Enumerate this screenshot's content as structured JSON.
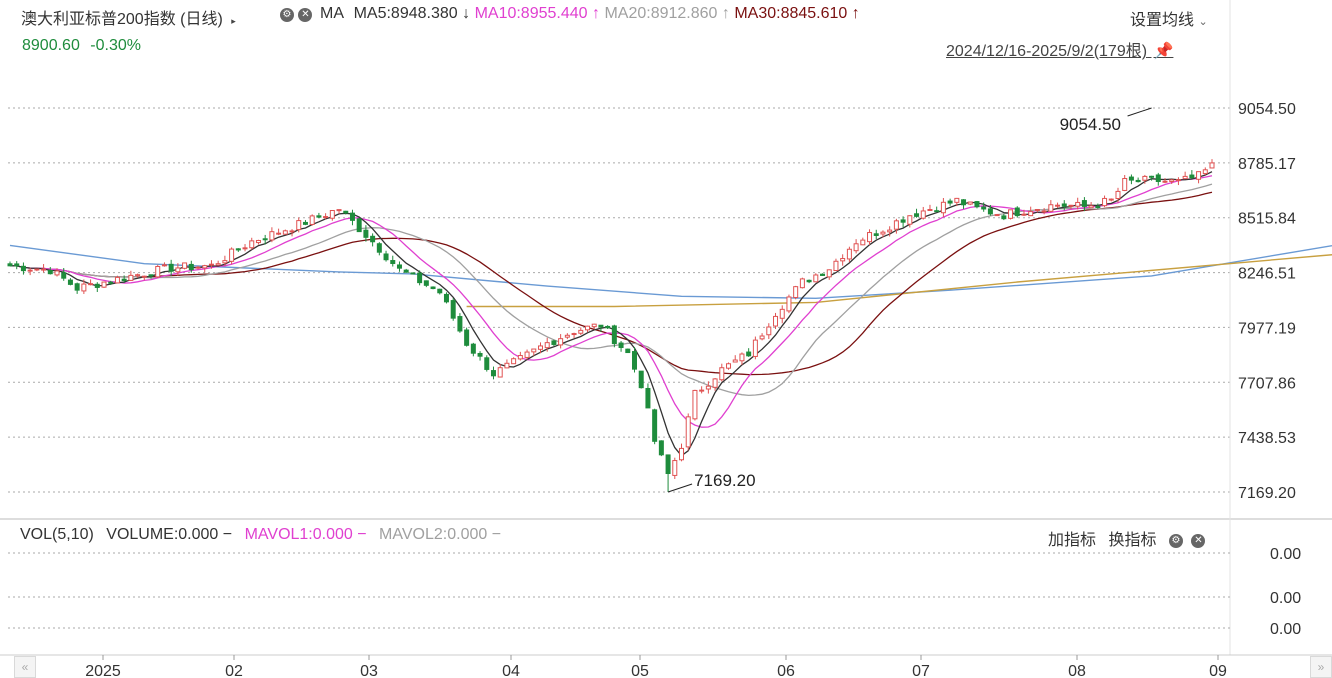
{
  "header": {
    "title": "澳大利亚标普200指数 (日线)",
    "ma_label": "MA",
    "ma5": "MA5:8948.380",
    "ma5_arrow": "↓",
    "ma10": "MA10:8955.440",
    "ma10_arrow": "↑",
    "ma20": "MA20:8912.860",
    "ma20_arrow": "↑",
    "ma30": "MA30:8845.610",
    "ma30_arrow": "↑",
    "settings": "设置均线",
    "price": "8900.60",
    "change": "-0.30%",
    "range": "2024/12/16-2025/9/2(179根)"
  },
  "colors": {
    "up": "#e05252",
    "down": "#1e8c3c",
    "ma5": "#333333",
    "ma10": "#e040d0",
    "ma20": "#a0a0a0",
    "ma30": "#7a1010",
    "ma_blue": "#6a9ad4",
    "ma_gold": "#c8a040",
    "price_green": "#1e8c3c"
  },
  "chart_data": {
    "type": "candlestick",
    "y_ticks": [
      "9054.50",
      "8785.17",
      "8515.84",
      "8246.51",
      "7977.19",
      "7707.86",
      "7438.53",
      "7169.20"
    ],
    "x_ticks": [
      "2025",
      "02",
      "03",
      "04",
      "05",
      "06",
      "07",
      "08",
      "09"
    ],
    "max_label": "9054.50",
    "min_label": "7169.20",
    "ylim": [
      7169.2,
      9054.5
    ],
    "anchors": [
      [
        0,
        8280
      ],
      [
        6,
        8260
      ],
      [
        10,
        8170
      ],
      [
        18,
        8230
      ],
      [
        24,
        8270
      ],
      [
        30,
        8280
      ],
      [
        36,
        8400
      ],
      [
        42,
        8470
      ],
      [
        46,
        8520
      ],
      [
        49,
        8560
      ],
      [
        54,
        8400
      ],
      [
        58,
        8260
      ],
      [
        64,
        8150
      ],
      [
        68,
        7900
      ],
      [
        72,
        7750
      ],
      [
        76,
        7820
      ],
      [
        80,
        7900
      ],
      [
        84,
        7960
      ],
      [
        88,
        7990
      ],
      [
        92,
        7850
      ],
      [
        94,
        7700
      ],
      [
        96,
        7420
      ],
      [
        98,
        7250
      ],
      [
        100,
        7400
      ],
      [
        102,
        7650
      ],
      [
        106,
        7770
      ],
      [
        110,
        7850
      ],
      [
        114,
        8050
      ],
      [
        118,
        8200
      ],
      [
        122,
        8270
      ],
      [
        126,
        8400
      ],
      [
        130,
        8460
      ],
      [
        134,
        8530
      ],
      [
        138,
        8570
      ],
      [
        141,
        8600
      ],
      [
        144,
        8560
      ],
      [
        148,
        8530
      ],
      [
        152,
        8560
      ],
      [
        156,
        8580
      ],
      [
        160,
        8570
      ],
      [
        164,
        8600
      ],
      [
        166,
        8690
      ],
      [
        170,
        8700
      ],
      [
        174,
        8690
      ],
      [
        177,
        8720
      ],
      [
        181,
        8820
      ],
      [
        185,
        8900
      ],
      [
        189,
        8980
      ],
      [
        191,
        9020
      ],
      [
        193,
        8980
      ],
      [
        196,
        8960
      ],
      [
        198,
        8940
      ],
      [
        199,
        8900
      ]
    ],
    "ma_blue_points": [
      [
        0,
        8380
      ],
      [
        20,
        8290
      ],
      [
        49,
        8250
      ],
      [
        60,
        8240
      ],
      [
        80,
        8180
      ],
      [
        100,
        8130
      ],
      [
        120,
        8120
      ],
      [
        140,
        8160
      ],
      [
        170,
        8230
      ],
      [
        199,
        8390
      ]
    ],
    "ma_gold_points": [
      [
        68,
        8080
      ],
      [
        90,
        8080
      ],
      [
        120,
        8100
      ],
      [
        150,
        8200
      ],
      [
        199,
        8340
      ]
    ]
  },
  "volume": {
    "vol": "VOL(5,10)",
    "volume": "VOLUME:0.000",
    "mavol1": "MAVOL1:0.000",
    "mavol2": "MAVOL2:0.000",
    "add_indicator": "加指标",
    "switch_indicator": "换指标",
    "ticks": [
      "0.00",
      "0.00",
      "0.00"
    ]
  },
  "icons": {
    "title_menu": "caret-right-icon",
    "gear": "gear-icon",
    "close": "close-icon",
    "pin": "pin-icon",
    "chevron": "chevron-down-icon",
    "scroll_left": "double-chevron-left-icon",
    "scroll_right": "double-chevron-right-icon"
  }
}
